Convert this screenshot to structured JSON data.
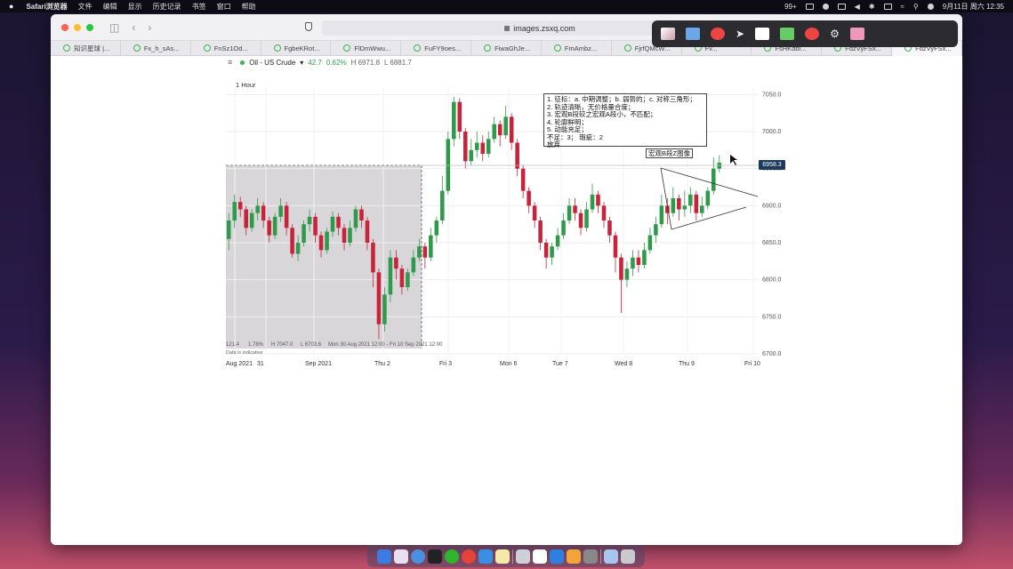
{
  "menubar": {
    "apple": "",
    "app_name": "Safari浏览器",
    "items": [
      "文件",
      "编辑",
      "显示",
      "历史记录",
      "书签",
      "窗口",
      "帮助"
    ],
    "badge": "99+",
    "datetime": "9月11日 周六  12:35"
  },
  "browser": {
    "address": "images.zsxq.com",
    "tabs": [
      "知识星球 |...",
      "Fx_h_sAs...",
      "FnSz1Od...",
      "FgbeKRot...",
      "FlDmWwu...",
      "FuFY9oes...",
      "FiwaGhJe...",
      "FmAmbz...",
      "FjrfQMcW...",
      "Fv...",
      "FsHKdbi...",
      "FdzVyFSx...",
      "FdzVyFSx..."
    ]
  },
  "chart_header": {
    "symbol": "Oil - US Crude",
    "change": "42.7",
    "change_pct": "0.62%",
    "high": "H 6971.8",
    "low": "L 6881.7",
    "interval": "1 Hour"
  },
  "annotation_note": {
    "lines": [
      "1. 征标：a. 中期调整；b. 弱势的；c. 对称三角形；",
      "2. 轨迹清晰，无价格量合度；",
      "3. 宏观B段较之宏观A段小，不匹配；",
      "4. 轮廓鲜明；",
      "5. 动能充足；",
      "不足：3；  瑕疵：2",
      "放弃"
    ]
  },
  "pattern_label": "宏观B段Z图像",
  "price_tag": "6958.3",
  "overlay_info": {
    "text1": "121.4",
    "text2": "1.78%",
    "text3": "H 7047.0",
    "text4": "L 6703.6",
    "range": "Mon 30 Aug 2021 12:00 - Fri 10 Sep 2021 12:00",
    "disclaimer": "Data is indicative"
  },
  "chart_data": {
    "type": "candlestick",
    "instrument": "Oil - US Crude",
    "interval": "1 Hour",
    "y_ticks": [
      7050.0,
      7000.0,
      6950.0,
      6900.0,
      6850.0,
      6800.0,
      6750.0,
      6700.0
    ],
    "ylim": [
      6700,
      7060
    ],
    "x_labels": [
      "Aug 2021",
      "31",
      "Sep 2021",
      "Thu 2",
      "Fri 3",
      "Mon 6",
      "Tue 7",
      "Wed 8",
      "Thu 9",
      "Fri 10"
    ],
    "last_price": 6958.3,
    "candles": [
      [
        6855,
        6880,
        6890,
        6840
      ],
      [
        6880,
        6905,
        6915,
        6870
      ],
      [
        6905,
        6895,
        6912,
        6885
      ],
      [
        6895,
        6870,
        6900,
        6860
      ],
      [
        6870,
        6890,
        6895,
        6865
      ],
      [
        6890,
        6900,
        6910,
        6880
      ],
      [
        6900,
        6880,
        6905,
        6870
      ],
      [
        6880,
        6860,
        6885,
        6850
      ],
      [
        6860,
        6885,
        6890,
        6855
      ],
      [
        6885,
        6900,
        6910,
        6878
      ],
      [
        6900,
        6870,
        6905,
        6860
      ],
      [
        6870,
        6835,
        6875,
        6830
      ],
      [
        6835,
        6850,
        6860,
        6825
      ],
      [
        6850,
        6875,
        6880,
        6845
      ],
      [
        6875,
        6885,
        6895,
        6865
      ],
      [
        6885,
        6860,
        6890,
        6850
      ],
      [
        6860,
        6840,
        6865,
        6830
      ],
      [
        6840,
        6865,
        6870,
        6835
      ],
      [
        6865,
        6885,
        6892,
        6858
      ],
      [
        6885,
        6870,
        6890,
        6860
      ],
      [
        6870,
        6850,
        6875,
        6840
      ],
      [
        6850,
        6870,
        6880,
        6845
      ],
      [
        6870,
        6895,
        6900,
        6865
      ],
      [
        6895,
        6880,
        6900,
        6870
      ],
      [
        6880,
        6850,
        6885,
        6840
      ],
      [
        6850,
        6810,
        6855,
        6790
      ],
      [
        6810,
        6740,
        6815,
        6720
      ],
      [
        6740,
        6780,
        6790,
        6730
      ],
      [
        6780,
        6830,
        6840,
        6770
      ],
      [
        6830,
        6815,
        6840,
        6800
      ],
      [
        6815,
        6790,
        6820,
        6780
      ],
      [
        6790,
        6810,
        6815,
        6785
      ],
      [
        6810,
        6830,
        6840,
        6805
      ],
      [
        6830,
        6845,
        6855,
        6825
      ],
      [
        6845,
        6830,
        6850,
        6815
      ],
      [
        6830,
        6860,
        6870,
        6825
      ],
      [
        6860,
        6880,
        6885,
        6850
      ],
      [
        6880,
        6920,
        6940,
        6875
      ],
      [
        6920,
        6990,
        7000,
        6915
      ],
      [
        6990,
        7040,
        7047,
        6980
      ],
      [
        7040,
        7000,
        7045,
        6990
      ],
      [
        7000,
        6960,
        7005,
        6950
      ],
      [
        6960,
        6975,
        6990,
        6955
      ],
      [
        6975,
        6985,
        7000,
        6965
      ],
      [
        6985,
        6970,
        6995,
        6960
      ],
      [
        6970,
        6990,
        7000,
        6965
      ],
      [
        6990,
        7010,
        7020,
        6985
      ],
      [
        7010,
        6995,
        7015,
        6980
      ],
      [
        6995,
        7020,
        7035,
        6990
      ],
      [
        7020,
        6985,
        7025,
        6975
      ],
      [
        6985,
        6950,
        6990,
        6940
      ],
      [
        6950,
        6920,
        6955,
        6910
      ],
      [
        6920,
        6900,
        6925,
        6890
      ],
      [
        6900,
        6880,
        6905,
        6870
      ],
      [
        6880,
        6850,
        6885,
        6840
      ],
      [
        6850,
        6830,
        6855,
        6815
      ],
      [
        6830,
        6845,
        6850,
        6820
      ],
      [
        6845,
        6860,
        6870,
        6840
      ],
      [
        6860,
        6880,
        6890,
        6855
      ],
      [
        6880,
        6900,
        6910,
        6875
      ],
      [
        6900,
        6890,
        6910,
        6880
      ],
      [
        6890,
        6870,
        6895,
        6860
      ],
      [
        6870,
        6895,
        6905,
        6865
      ],
      [
        6895,
        6915,
        6930,
        6890
      ],
      [
        6915,
        6900,
        6920,
        6890
      ],
      [
        6900,
        6880,
        6905,
        6870
      ],
      [
        6880,
        6860,
        6885,
        6850
      ],
      [
        6860,
        6830,
        6865,
        6810
      ],
      [
        6830,
        6800,
        6835,
        6755
      ],
      [
        6800,
        6815,
        6825,
        6790
      ],
      [
        6815,
        6830,
        6840,
        6805
      ],
      [
        6830,
        6820,
        6840,
        6810
      ],
      [
        6820,
        6840,
        6850,
        6815
      ],
      [
        6840,
        6860,
        6870,
        6835
      ],
      [
        6860,
        6875,
        6885,
        6850
      ],
      [
        6875,
        6900,
        6915,
        6870
      ],
      [
        6900,
        6890,
        6910,
        6875
      ],
      [
        6890,
        6910,
        6925,
        6885
      ],
      [
        6910,
        6895,
        6915,
        6880
      ],
      [
        6895,
        6900,
        6920,
        6885
      ],
      [
        6900,
        6915,
        6925,
        6890
      ],
      [
        6915,
        6890,
        6920,
        6880
      ],
      [
        6890,
        6900,
        6912,
        6885
      ],
      [
        6900,
        6920,
        6925,
        6895
      ],
      [
        6920,
        6950,
        6965,
        6915
      ],
      [
        6950,
        6958,
        6968,
        6945
      ]
    ]
  }
}
